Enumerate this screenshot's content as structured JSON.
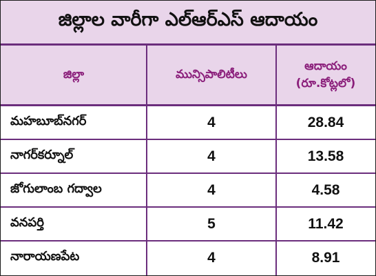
{
  "title": "జిల్లాల వారీగా ఎల్‌ఆర్‌ఎస్‌ ఆదాయం",
  "headers": {
    "district": "జిల్లా",
    "municipalities": "మున్సిపాలిటీలు",
    "income_line1": "ఆదాయం",
    "income_line2": "(రూ.కోట్లలో)"
  },
  "rows": [
    {
      "district": "మహబూబ్‌నగర్‌",
      "municipalities": "4",
      "income": "28.84"
    },
    {
      "district": "నాగర్‌కర్నూల్‌",
      "municipalities": "4",
      "income": "13.58"
    },
    {
      "district": "జోగులాంబ గద్వాల",
      "municipalities": "4",
      "income": "4.58"
    },
    {
      "district": "వనపర్తి",
      "municipalities": "5",
      "income": "11.42"
    },
    {
      "district": "నారాయణపేట",
      "municipalities": "4",
      "income": "8.91"
    }
  ],
  "colors": {
    "header_background": "#e9d5ea",
    "accent": "#8a1d7a",
    "rule": "#6b2d7c"
  }
}
